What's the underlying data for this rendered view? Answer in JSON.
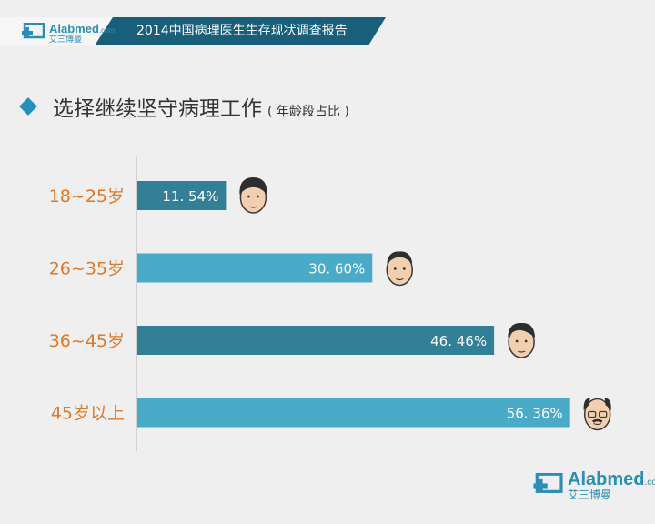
{
  "header": {
    "logo_brand": "Alabmed",
    "logo_sub": "艾三博曼",
    "logo_dotcom": ".com",
    "title": "2014中国病理医生生存现状调查报告",
    "bg_color": "#1a5f7a",
    "accent_color": "#2a8fb8"
  },
  "title": {
    "main": "选择继续坚守病理工作",
    "sub": "( 年龄段占比 )",
    "marker_icon": "diamond-icon"
  },
  "footer_logo": {
    "brand": "Alabmed",
    "sub": "艾三博曼",
    "dotcom": ".com"
  },
  "chart_data": {
    "type": "bar",
    "orientation": "horizontal",
    "categories": [
      "18~25岁",
      "26~35岁",
      "36~45岁",
      "45岁以上"
    ],
    "values": [
      11.54,
      30.6,
      46.46,
      56.36
    ],
    "value_labels": [
      "11. 54%",
      "30. 60%",
      "46. 46%",
      "56. 36%"
    ],
    "bar_colors": [
      "#337f96",
      "#4aabc8",
      "#337f96",
      "#4aabc8"
    ],
    "category_label_color": "#e07a2a",
    "icons": [
      "young-man-face-icon",
      "man-face-icon",
      "middle-aged-man-face-icon",
      "old-man-glasses-face-icon"
    ],
    "xlim": [
      0,
      100
    ],
    "grid": false
  }
}
